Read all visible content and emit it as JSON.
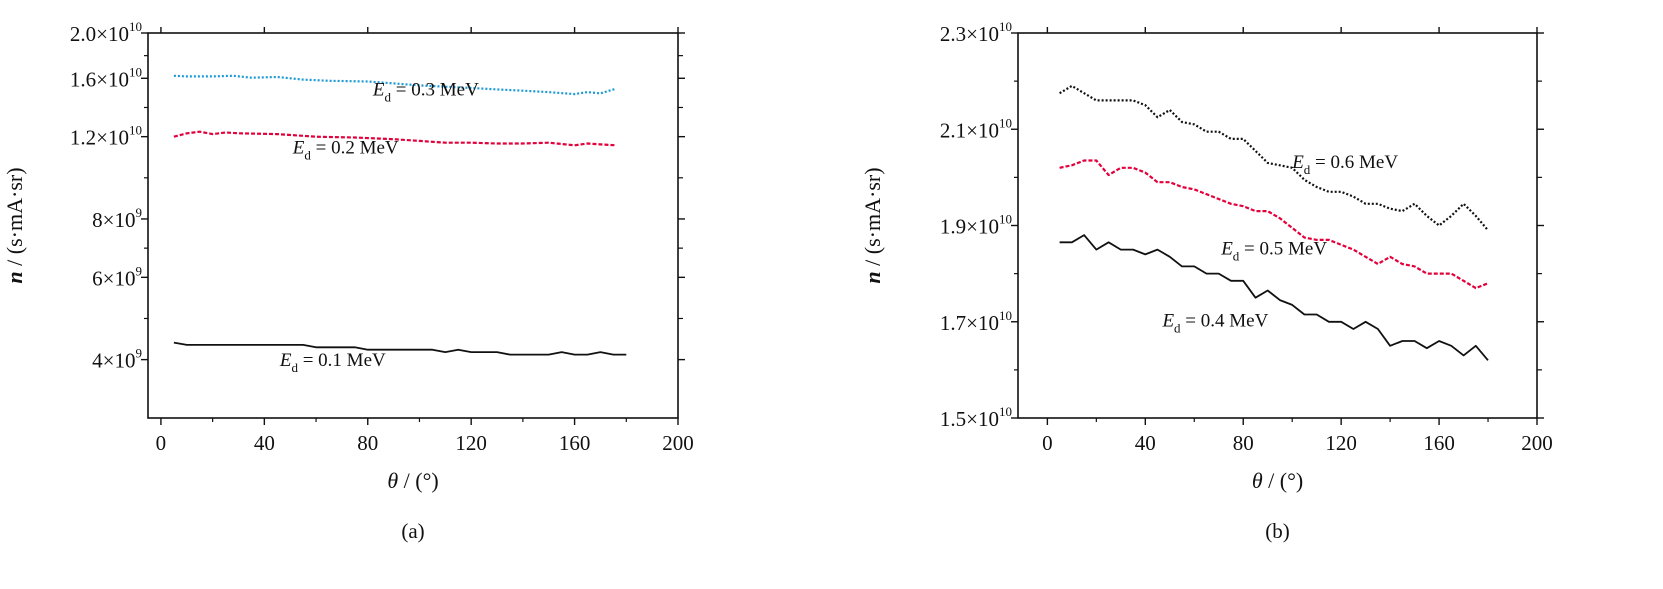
{
  "chart_data": [
    {
      "id": "a",
      "type": "line",
      "panel_label": "(a)",
      "xlabel_var": "θ",
      "xlabel_unit": " / (°)",
      "ylabel_var": "n",
      "ylabel_unit": " / (s·mA·sr)",
      "xlim": [
        -5,
        200
      ],
      "ylim": [
        3000000000,
        20000000000
      ],
      "y_scale": "log",
      "x_ticks": [
        0,
        40,
        80,
        120,
        160,
        200
      ],
      "x_tick_labels": [
        "0",
        "40",
        "80",
        "120",
        "160",
        "200"
      ],
      "y_ticks": [
        {
          "value": 20000000000,
          "mant": "2.0×10",
          "exp": "10"
        },
        {
          "value": 16000000000,
          "mant": "1.6×10",
          "exp": "10"
        },
        {
          "value": 12000000000,
          "mant": "1.2×10",
          "exp": "10"
        },
        {
          "value": 8000000000,
          "mant": "8×10",
          "exp": "9"
        },
        {
          "value": 6000000000,
          "mant": "6×10",
          "exp": "9"
        },
        {
          "value": 4000000000,
          "mant": "4×10",
          "exp": "9"
        }
      ],
      "grid": false,
      "series": [
        {
          "name": "E_d = 0.3 MeV",
          "color": "#1a9ad6",
          "dash": "2,2",
          "x": [
            5,
            10,
            20,
            28,
            35,
            45,
            55,
            65,
            80,
            90,
            100,
            110,
            120,
            130,
            140,
            150,
            160,
            165,
            170,
            176
          ],
          "y": [
            16200000000,
            16150000000,
            16150000000,
            16200000000,
            16050000000,
            16100000000,
            15900000000,
            15800000000,
            15750000000,
            15600000000,
            15450000000,
            15350000000,
            15250000000,
            15150000000,
            15050000000,
            14950000000,
            14800000000,
            14950000000,
            14850000000,
            15200000000
          ]
        },
        {
          "name": "E_d = 0.2 MeV",
          "color": "#e3003b",
          "dash": "4,2",
          "x": [
            5,
            10,
            15,
            20,
            25,
            30,
            45,
            60,
            75,
            90,
            100,
            110,
            120,
            130,
            140,
            150,
            160,
            165,
            170,
            176
          ],
          "y": [
            12000000000,
            12200000000,
            12300000000,
            12150000000,
            12250000000,
            12200000000,
            12150000000,
            12000000000,
            11950000000,
            11850000000,
            11750000000,
            11650000000,
            11650000000,
            11600000000,
            11600000000,
            11650000000,
            11500000000,
            11600000000,
            11550000000,
            11500000000
          ]
        },
        {
          "name": "E_d = 0.1 MeV",
          "color": "#111111",
          "dash": "",
          "x": [
            5,
            10,
            20,
            30,
            40,
            50,
            55,
            60,
            70,
            75,
            80,
            90,
            100,
            105,
            110,
            115,
            120,
            125,
            130,
            135,
            140,
            145,
            150,
            155,
            160,
            165,
            170,
            175,
            180
          ],
          "y": [
            4350000000,
            4300000000,
            4300000000,
            4300000000,
            4300000000,
            4300000000,
            4300000000,
            4250000000,
            4250000000,
            4250000000,
            4200000000,
            4200000000,
            4200000000,
            4200000000,
            4150000000,
            4200000000,
            4150000000,
            4150000000,
            4150000000,
            4100000000,
            4100000000,
            4100000000,
            4100000000,
            4150000000,
            4100000000,
            4100000000,
            4150000000,
            4100000000,
            4100000000
          ]
        }
      ],
      "annotations": [
        {
          "prefix": "E",
          "sub": "d",
          "text": "= 0.3 MeV",
          "at": [
            82,
            14700000000
          ]
        },
        {
          "prefix": "E",
          "sub": "d",
          "text": "= 0.2 MeV",
          "at": [
            51,
            11050000000
          ]
        },
        {
          "prefix": "E",
          "sub": "d",
          "text": "= 0.1 MeV",
          "at": [
            46,
            3880000000
          ]
        }
      ]
    },
    {
      "id": "b",
      "type": "line",
      "panel_label": "(b)",
      "xlabel_var": "θ",
      "xlabel_unit": " / (°)",
      "ylabel_var": "n",
      "ylabel_unit": " / (s·mA·sr)",
      "xlim": [
        -12,
        200
      ],
      "ylim": [
        15000000000,
        23000000000
      ],
      "y_scale": "linear",
      "x_ticks": [
        0,
        40,
        80,
        120,
        160,
        200
      ],
      "x_tick_labels": [
        "0",
        "40",
        "80",
        "120",
        "160",
        "200"
      ],
      "y_ticks": [
        {
          "value": 23000000000,
          "mant": "2.3×10",
          "exp": "10"
        },
        {
          "value": 21000000000,
          "mant": "2.1×10",
          "exp": "10"
        },
        {
          "value": 19000000000,
          "mant": "1.9×10",
          "exp": "10"
        },
        {
          "value": 17000000000,
          "mant": "1.7×10",
          "exp": "10"
        },
        {
          "value": 15000000000,
          "mant": "1.5×10",
          "exp": "10"
        }
      ],
      "grid": false,
      "series": [
        {
          "name": "E_d = 0.6 MeV",
          "color": "#111111",
          "dash": "2,2",
          "x": [
            5,
            10,
            15,
            20,
            25,
            30,
            35,
            40,
            45,
            50,
            55,
            60,
            65,
            70,
            75,
            80,
            85,
            90,
            95,
            100,
            105,
            110,
            115,
            120,
            125,
            130,
            135,
            140,
            145,
            150,
            155,
            160,
            165,
            170,
            175,
            180
          ],
          "y": [
            21750000000,
            21900000000,
            21750000000,
            21600000000,
            21600000000,
            21600000000,
            21600000000,
            21500000000,
            21250000000,
            21400000000,
            21150000000,
            21100000000,
            20950000000,
            20950000000,
            20800000000,
            20800000000,
            20550000000,
            20300000000,
            20250000000,
            20200000000,
            19950000000,
            19800000000,
            19700000000,
            19700000000,
            19600000000,
            19450000000,
            19450000000,
            19350000000,
            19300000000,
            19450000000,
            19200000000,
            19000000000,
            19200000000,
            19450000000,
            19200000000,
            18900000000
          ]
        },
        {
          "name": "E_d = 0.5 MeV",
          "color": "#e3003b",
          "dash": "4,2",
          "x": [
            5,
            10,
            15,
            20,
            25,
            30,
            35,
            40,
            45,
            50,
            55,
            60,
            65,
            70,
            75,
            80,
            85,
            90,
            95,
            100,
            105,
            110,
            115,
            120,
            125,
            130,
            135,
            140,
            145,
            150,
            155,
            160,
            165,
            170,
            175,
            180
          ],
          "y": [
            20200000000,
            20250000000,
            20350000000,
            20350000000,
            20050000000,
            20200000000,
            20200000000,
            20100000000,
            19900000000,
            19900000000,
            19800000000,
            19750000000,
            19650000000,
            19550000000,
            19450000000,
            19400000000,
            19300000000,
            19300000000,
            19150000000,
            18950000000,
            18750000000,
            18700000000,
            18700000000,
            18600000000,
            18500000000,
            18350000000,
            18200000000,
            18350000000,
            18200000000,
            18150000000,
            18000000000,
            18000000000,
            18000000000,
            17850000000,
            17700000000,
            17800000000
          ]
        },
        {
          "name": "E_d = 0.4 MeV",
          "color": "#111111",
          "dash": "",
          "x": [
            5,
            10,
            15,
            20,
            25,
            30,
            35,
            40,
            45,
            50,
            55,
            60,
            65,
            70,
            75,
            80,
            85,
            90,
            95,
            100,
            105,
            110,
            115,
            120,
            125,
            130,
            135,
            140,
            145,
            150,
            155,
            160,
            165,
            170,
            175,
            180
          ],
          "y": [
            18650000000,
            18650000000,
            18800000000,
            18500000000,
            18650000000,
            18500000000,
            18500000000,
            18400000000,
            18500000000,
            18350000000,
            18150000000,
            18150000000,
            18000000000,
            18000000000,
            17850000000,
            17850000000,
            17500000000,
            17650000000,
            17450000000,
            17350000000,
            17150000000,
            17150000000,
            17000000000,
            17000000000,
            16850000000,
            17000000000,
            16850000000,
            16500000000,
            16600000000,
            16600000000,
            16450000000,
            16600000000,
            16500000000,
            16300000000,
            16500000000,
            16200000000
          ]
        }
      ],
      "annotations": [
        {
          "prefix": "E",
          "sub": "d",
          "text": "= 0.6 MeV",
          "at": [
            100,
            20200000000
          ]
        },
        {
          "prefix": "E",
          "sub": "d",
          "text": "= 0.5 MeV",
          "at": [
            71,
            18400000000
          ]
        },
        {
          "prefix": "E",
          "sub": "d",
          "text": "= 0.4 MeV",
          "at": [
            47,
            16900000000
          ]
        }
      ]
    }
  ]
}
